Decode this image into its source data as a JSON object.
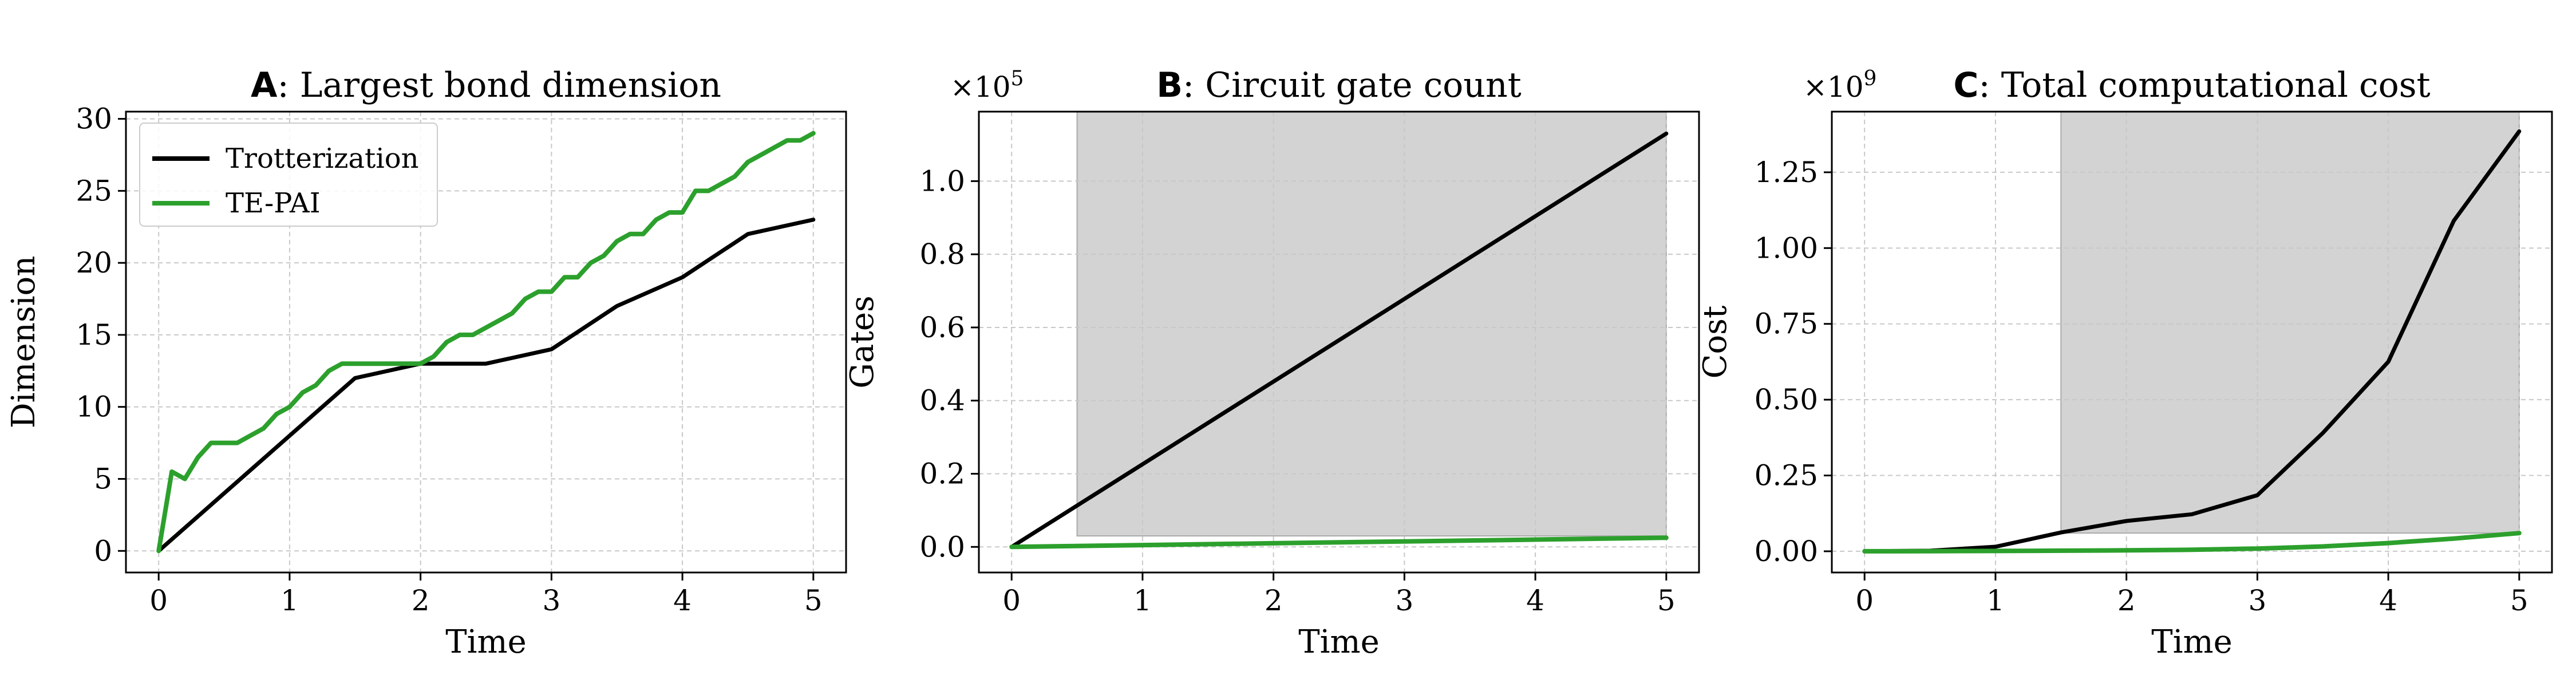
{
  "colors": {
    "trotter": "#000000",
    "tepai": "#2ca02c",
    "shade": "#d3d3d3",
    "grid": "#c8c8c8"
  },
  "chart_data": [
    {
      "type": "line",
      "panel_letter": "A",
      "title": ": Largest bond dimension",
      "xlabel": "Time",
      "ylabel": "Dimension",
      "xlim": [
        -0.25,
        5.25
      ],
      "ylim": [
        -1.5,
        30.5
      ],
      "xticks": [
        0,
        1,
        2,
        3,
        4,
        5
      ],
      "xtick_labels": [
        "0",
        "1",
        "2",
        "3",
        "4",
        "5"
      ],
      "yticks": [
        0,
        5,
        10,
        15,
        20,
        25,
        30
      ],
      "ytick_labels": [
        "0",
        "5",
        "10",
        "15",
        "20",
        "25",
        "30"
      ],
      "offset_label": "",
      "grid": true,
      "legend": {
        "location": "top-left",
        "entries": [
          "Trotterization",
          "TE-PAI"
        ]
      },
      "shade": null,
      "series": [
        {
          "name": "Trotterization",
          "color_key": "trotter",
          "x": [
            0,
            1.5,
            2,
            2.5,
            3,
            3.5,
            4,
            4.5,
            5
          ],
          "y": [
            0,
            12,
            13,
            13,
            14,
            17,
            19,
            22,
            23
          ]
        },
        {
          "name": "TE-PAI",
          "color_key": "tepai",
          "x": [
            0,
            0.1,
            0.2,
            0.3,
            0.4,
            0.5,
            0.6,
            0.7,
            0.8,
            0.9,
            1.0,
            1.1,
            1.2,
            1.3,
            1.4,
            1.5,
            1.6,
            1.7,
            1.8,
            1.9,
            2.0,
            2.1,
            2.2,
            2.3,
            2.4,
            2.5,
            2.6,
            2.7,
            2.8,
            2.9,
            3.0,
            3.1,
            3.2,
            3.3,
            3.4,
            3.5,
            3.6,
            3.7,
            3.8,
            3.9,
            4.0,
            4.1,
            4.2,
            4.3,
            4.4,
            4.5,
            4.6,
            4.7,
            4.8,
            4.9,
            5.0
          ],
          "y": [
            0,
            5.5,
            5,
            6.5,
            7.5,
            7.5,
            7.5,
            8,
            8.5,
            9.5,
            10,
            11,
            11.5,
            12.5,
            13,
            13,
            13,
            13,
            13,
            13,
            13,
            13.5,
            14.5,
            15,
            15,
            15.5,
            16,
            16.5,
            17.5,
            18,
            18,
            19,
            19,
            20,
            20.5,
            21.5,
            22,
            22,
            23,
            23.5,
            23.5,
            25,
            25,
            25.5,
            26,
            27,
            27.5,
            28,
            28.5,
            28.5,
            29
          ]
        }
      ]
    },
    {
      "type": "line",
      "panel_letter": "B",
      "title": ": Circuit gate count",
      "xlabel": "Time",
      "ylabel": "Gates",
      "xlim": [
        -0.25,
        5.25
      ],
      "ylim": [
        -0.07,
        1.19
      ],
      "xticks": [
        0,
        1,
        2,
        3,
        4,
        5
      ],
      "xtick_labels": [
        "0",
        "1",
        "2",
        "3",
        "4",
        "5"
      ],
      "yticks": [
        0.0,
        0.2,
        0.4,
        0.6,
        0.8,
        1.0
      ],
      "ytick_labels": [
        "0.0",
        "0.2",
        "0.4",
        "0.6",
        "0.8",
        "1.0"
      ],
      "offset_label": "×10",
      "offset_exponent": "5",
      "grid": true,
      "legend": null,
      "shade": {
        "x0": 0.5,
        "x1": 5.0,
        "y0": 0.03,
        "y1": 1.19
      },
      "series": [
        {
          "name": "Trotterization",
          "color_key": "trotter",
          "x": [
            0,
            5
          ],
          "y": [
            0,
            1.13
          ]
        },
        {
          "name": "TE-PAI",
          "color_key": "tepai",
          "x": [
            0,
            1,
            2,
            3,
            4,
            5
          ],
          "y": [
            0,
            0.005,
            0.01,
            0.015,
            0.02,
            0.025
          ]
        }
      ]
    },
    {
      "type": "line",
      "panel_letter": "C",
      "title": ": Total computational cost",
      "xlabel": "Time",
      "ylabel": "Cost",
      "xlim": [
        -0.25,
        5.25
      ],
      "ylim": [
        -0.07,
        1.45
      ],
      "xticks": [
        0,
        1,
        2,
        3,
        4,
        5
      ],
      "xtick_labels": [
        "0",
        "1",
        "2",
        "3",
        "4",
        "5"
      ],
      "yticks": [
        0.0,
        0.25,
        0.5,
        0.75,
        1.0,
        1.25
      ],
      "ytick_labels": [
        "0.00",
        "0.25",
        "0.50",
        "0.75",
        "1.00",
        "1.25"
      ],
      "offset_label": "×10",
      "offset_exponent": "9",
      "grid": true,
      "legend": null,
      "shade": {
        "x0": 1.5,
        "x1": 5.0,
        "y0": 0.06,
        "y1": 1.45
      },
      "series": [
        {
          "name": "Trotterization",
          "color_key": "trotter",
          "x": [
            0,
            0.5,
            1,
            1.5,
            2,
            2.5,
            3,
            3.5,
            4,
            4.5,
            5
          ],
          "y": [
            0,
            0.002,
            0.015,
            0.062,
            0.1,
            0.122,
            0.185,
            0.39,
            0.625,
            1.09,
            1.385
          ]
        },
        {
          "name": "TE-PAI",
          "color_key": "tepai",
          "x": [
            0,
            0.5,
            1,
            1.5,
            2,
            2.5,
            3,
            3.5,
            4,
            4.5,
            5
          ],
          "y": [
            0,
            0.0005,
            0.001,
            0.002,
            0.003,
            0.005,
            0.009,
            0.016,
            0.027,
            0.042,
            0.06
          ]
        }
      ]
    }
  ]
}
